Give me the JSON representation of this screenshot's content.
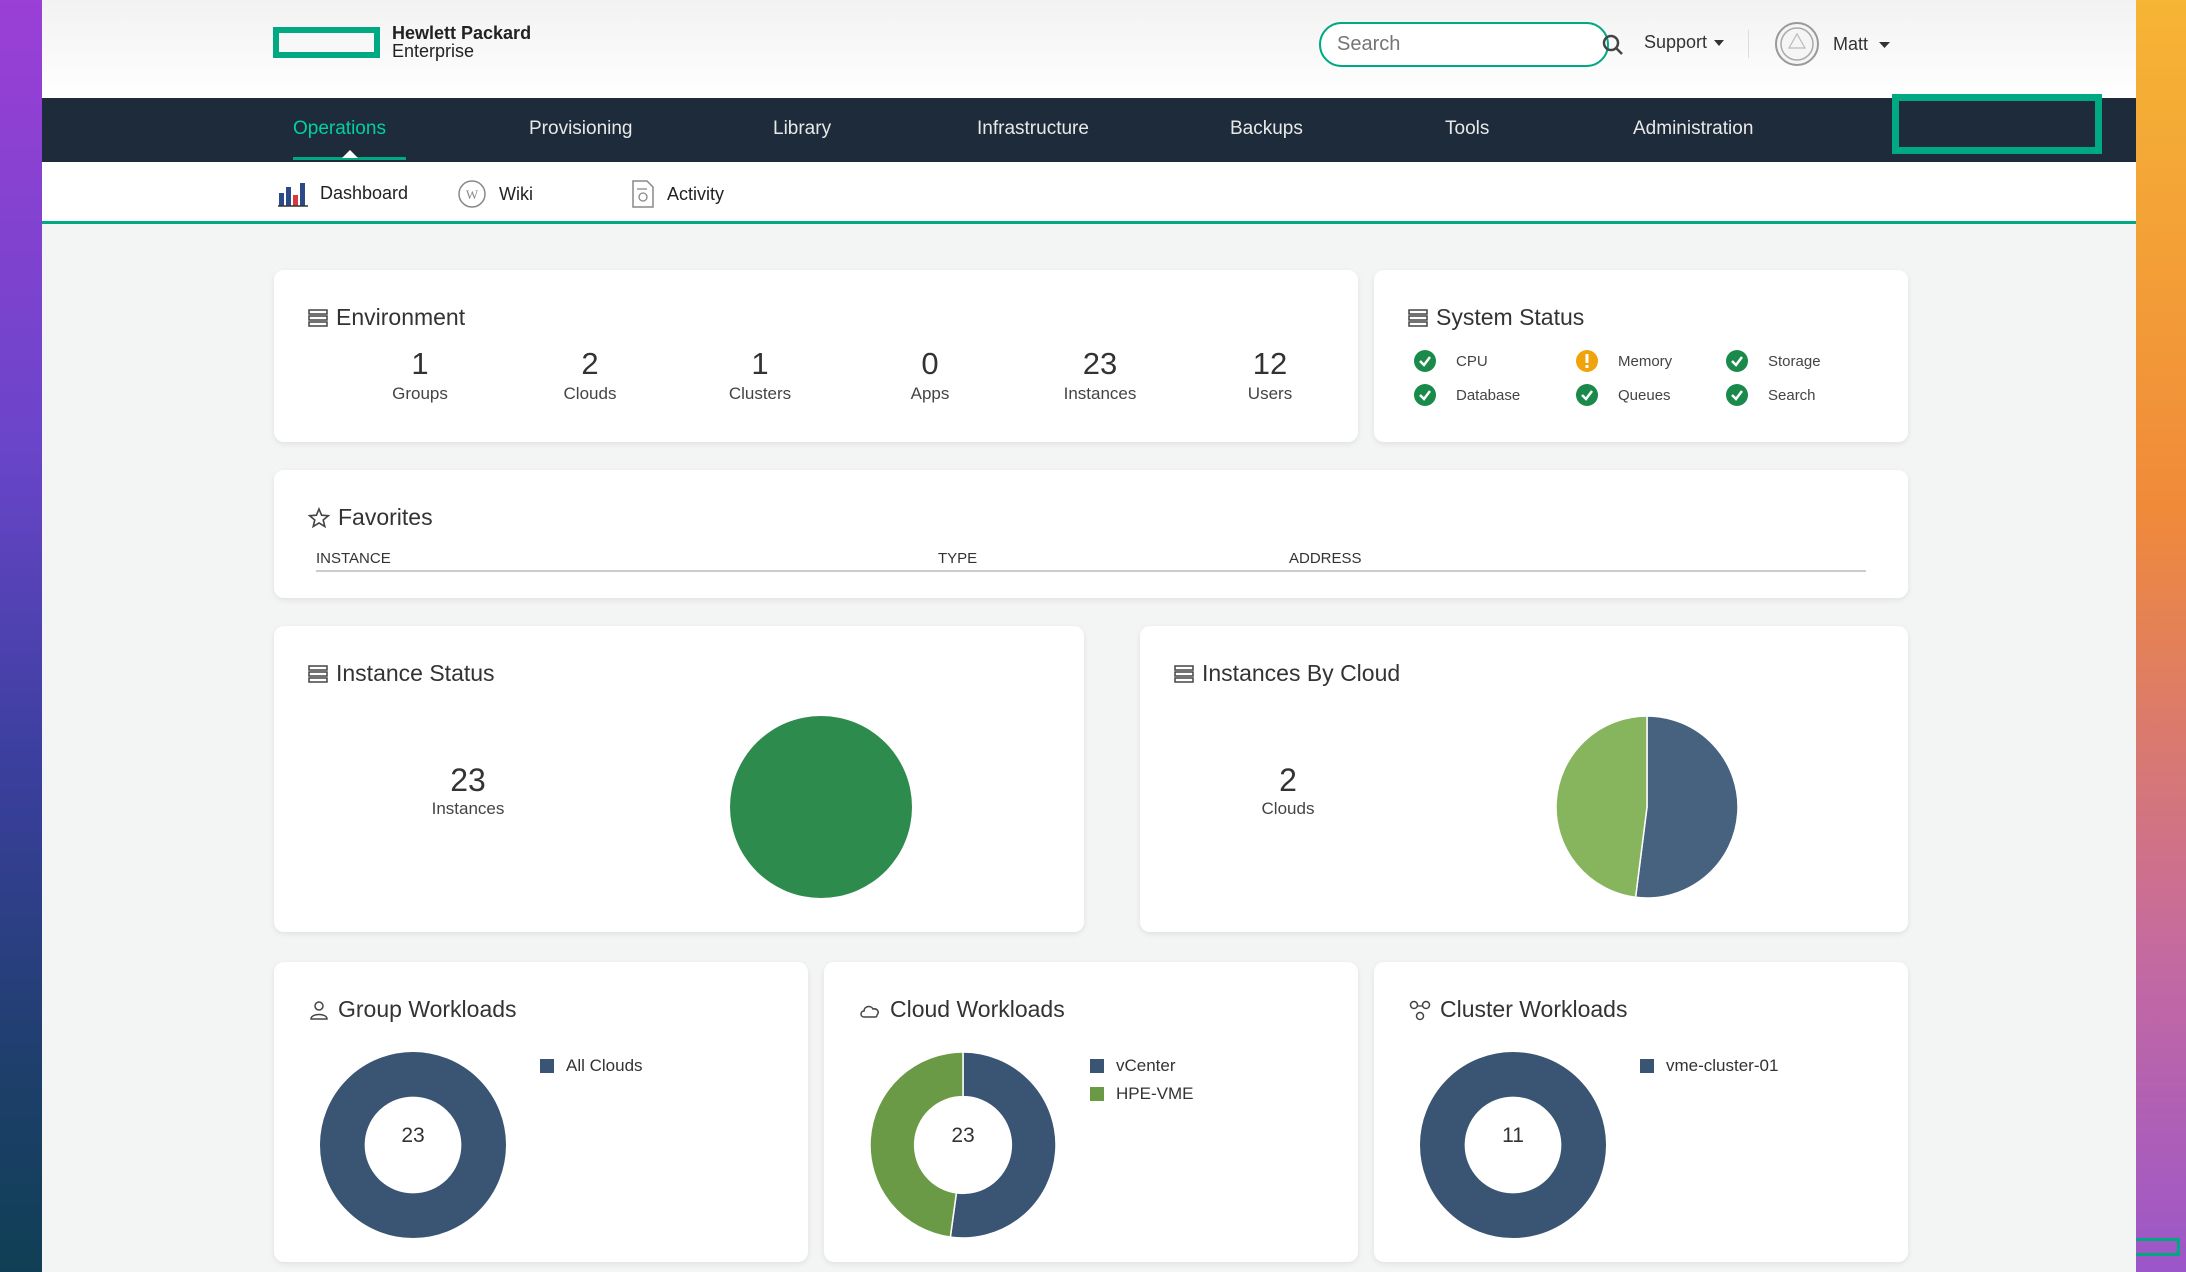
{
  "header": {
    "logo_line1": "Hewlett Packard",
    "logo_line2": "Enterprise",
    "search_placeholder": "Search",
    "support_label": "Support",
    "user_name": "Matt"
  },
  "nav": {
    "items": [
      "Operations",
      "Provisioning",
      "Library",
      "Infrastructure",
      "Backups",
      "Tools",
      "Administration"
    ],
    "active": "Operations"
  },
  "subnav": {
    "items": [
      "Dashboard",
      "Wiki",
      "Activity"
    ]
  },
  "environment": {
    "title": "Environment",
    "stats": [
      {
        "value": "1",
        "label": "Groups"
      },
      {
        "value": "2",
        "label": "Clouds"
      },
      {
        "value": "1",
        "label": "Clusters"
      },
      {
        "value": "0",
        "label": "Apps"
      },
      {
        "value": "23",
        "label": "Instances"
      },
      {
        "value": "12",
        "label": "Users"
      }
    ]
  },
  "system_status": {
    "title": "System Status",
    "items": [
      {
        "label": "CPU",
        "status": "ok"
      },
      {
        "label": "Memory",
        "status": "warning"
      },
      {
        "label": "Storage",
        "status": "ok"
      },
      {
        "label": "Database",
        "status": "ok"
      },
      {
        "label": "Queues",
        "status": "ok"
      },
      {
        "label": "Search",
        "status": "ok"
      }
    ],
    "colors": {
      "ok": "#1a8a4a",
      "warning": "#f0a30a"
    }
  },
  "favorites": {
    "title": "Favorites",
    "columns": [
      "INSTANCE",
      "TYPE",
      "ADDRESS"
    ]
  },
  "instance_status": {
    "title": "Instance Status",
    "value": "23",
    "label": "Instances"
  },
  "instances_by_cloud": {
    "title": "Instances By Cloud",
    "value": "2",
    "label": "Clouds"
  },
  "group_workloads": {
    "title": "Group Workloads",
    "center": "23",
    "legend": [
      "All Clouds"
    ]
  },
  "cloud_workloads": {
    "title": "Cloud Workloads",
    "center": "23",
    "legend": [
      "vCenter",
      "HPE-VME"
    ]
  },
  "cluster_workloads": {
    "title": "Cluster Workloads",
    "center": "11",
    "legend": [
      "vme-cluster-01"
    ]
  },
  "chart_data": [
    {
      "type": "pie",
      "categories": [
        "Instances"
      ],
      "values": [
        23
      ],
      "colors": [
        "#2e8b4e"
      ]
    },
    {
      "type": "pie",
      "categories": [
        "vCenter",
        "HPE-VME"
      ],
      "values": [
        52,
        48
      ],
      "colors": [
        "#46627f",
        "#86b55e"
      ]
    },
    {
      "type": "pie",
      "categories": [
        "All Clouds"
      ],
      "values": [
        23
      ],
      "colors": [
        "#3a5473"
      ]
    },
    {
      "type": "pie",
      "categories": [
        "vCenter",
        "HPE-VME"
      ],
      "values": [
        12,
        11
      ],
      "colors": [
        "#3a5473",
        "#6a9a45"
      ]
    },
    {
      "type": "pie",
      "categories": [
        "vme-cluster-01"
      ],
      "values": [
        11
      ],
      "colors": [
        "#3a5473"
      ]
    }
  ]
}
